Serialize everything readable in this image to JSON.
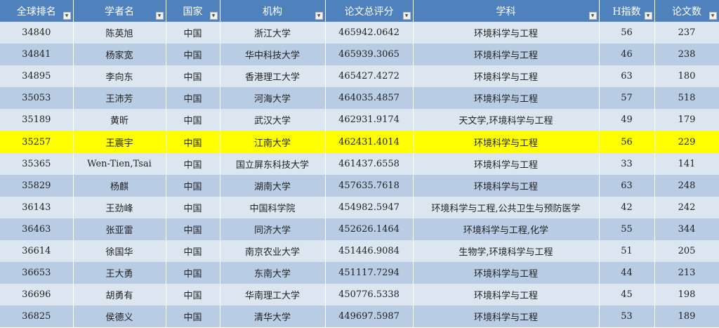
{
  "colors": {
    "header": "#4f81bd",
    "row_light": "#dce6f1",
    "row_dark": "#b8cce4",
    "highlight": "#ffff00"
  },
  "columns": [
    "全球排名",
    "学者名",
    "国家",
    "机构",
    "论文总评分",
    "学科",
    "H指数",
    "论文数"
  ],
  "filter_icon": "dropdown-arrow-icon",
  "rows": [
    [
      "34840",
      "陈英旭",
      "中国",
      "浙江大学",
      "465942.0642",
      "环境科学与工程",
      "56",
      "237"
    ],
    [
      "34841",
      "杨家宽",
      "中国",
      "华中科技大学",
      "465939.3065",
      "环境科学与工程",
      "46",
      "238"
    ],
    [
      "34895",
      "李向东",
      "中国",
      "香港理工大学",
      "465427.4272",
      "环境科学与工程",
      "63",
      "180"
    ],
    [
      "35053",
      "王沛芳",
      "中国",
      "河海大学",
      "464035.4857",
      "环境科学与工程",
      "57",
      "518"
    ],
    [
      "35189",
      "黄昕",
      "中国",
      "武汉大学",
      "462931.9174",
      "天文学,环境科学与工程",
      "49",
      "179"
    ],
    [
      "35257",
      "王震宇",
      "中国",
      "江南大学",
      "462431.4014",
      "环境科学与工程",
      "56",
      "229"
    ],
    [
      "35365",
      "Wen-Tien,Tsai",
      "中国",
      "国立屏东科技大学",
      "461437.6558",
      "环境科学与工程",
      "33",
      "141"
    ],
    [
      "35829",
      "杨麒",
      "中国",
      "湖南大学",
      "457635.7618",
      "环境科学与工程",
      "63",
      "248"
    ],
    [
      "36143",
      "王劲峰",
      "中国",
      "中国科学院",
      "454982.5947",
      "环境科学与工程,公共卫生与预防医学",
      "42",
      "242"
    ],
    [
      "36463",
      "张亚雷",
      "中国",
      "同济大学",
      "452626.1464",
      "环境科学与工程,化学",
      "55",
      "344"
    ],
    [
      "36614",
      "徐国华",
      "中国",
      "南京农业大学",
      "451446.9084",
      "生物学,环境科学与工程",
      "51",
      "205"
    ],
    [
      "36653",
      "王大勇",
      "中国",
      "东南大学",
      "451117.7294",
      "环境科学与工程",
      "44",
      "213"
    ],
    [
      "36696",
      "胡勇有",
      "中国",
      "华南理工大学",
      "450776.5338",
      "环境科学与工程",
      "45",
      "198"
    ],
    [
      "36825",
      "侯德义",
      "中国",
      "清华大学",
      "449697.5987",
      "环境科学与工程",
      "53",
      "189"
    ]
  ],
  "highlighted_row": 5
}
